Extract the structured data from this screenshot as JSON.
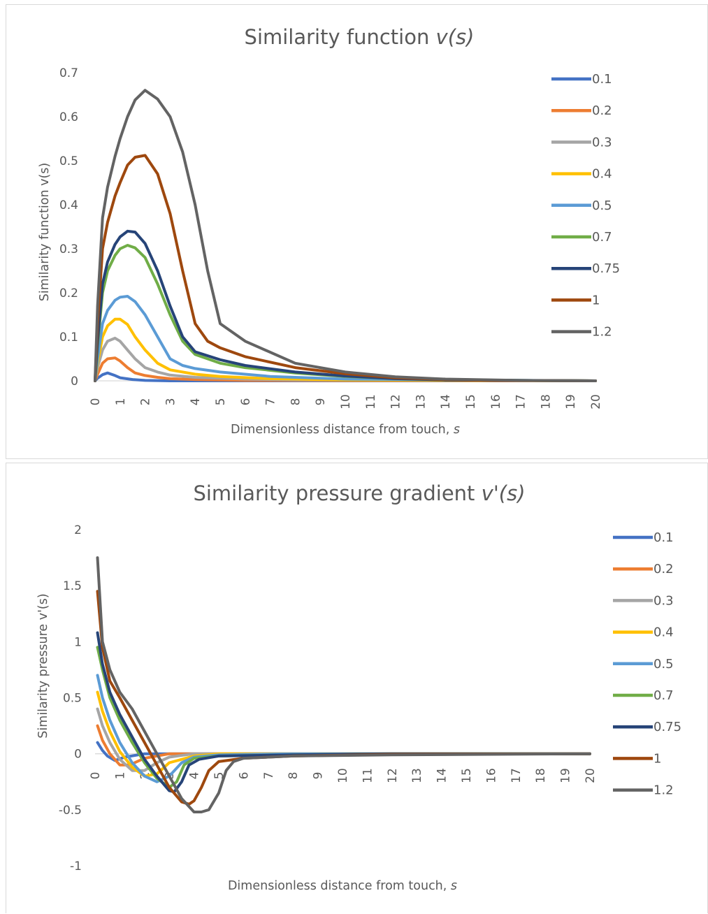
{
  "chart_data": [
    {
      "type": "line",
      "title": "Similarity function ",
      "title_italic": "v(s)",
      "xlabel": "Dimensionless distance from touch, ",
      "xlabel_italic": "s",
      "ylabel": "Similarity function v(s)",
      "xlim": [
        0,
        20
      ],
      "ylim": [
        0,
        0.7
      ],
      "yticks": [
        "0",
        "0.1",
        "0.2",
        "0.3",
        "0.4",
        "0.5",
        "0.6",
        "0.7"
      ],
      "xticks": [
        "0",
        "1",
        "2",
        "3",
        "4",
        "5",
        "6",
        "7",
        "8",
        "9",
        "10",
        "11",
        "12",
        "13",
        "14",
        "15",
        "16",
        "17",
        "18",
        "19",
        "20"
      ],
      "grid": false,
      "legend_position": "right",
      "series": [
        {
          "name": "0.1",
          "color": "#4472C4",
          "x": [
            0,
            0.1,
            0.3,
            0.5,
            0.8,
            1,
            1.5,
            2,
            3,
            20
          ],
          "y": [
            0,
            0.006,
            0.014,
            0.018,
            0.012,
            0.007,
            0.003,
            0.001,
            0,
            0
          ]
        },
        {
          "name": "0.2",
          "color": "#ED7D31",
          "x": [
            0,
            0.1,
            0.3,
            0.5,
            0.8,
            1,
            1.3,
            1.6,
            2,
            2.5,
            3,
            4,
            6,
            20
          ],
          "y": [
            0,
            0.015,
            0.04,
            0.05,
            0.052,
            0.045,
            0.03,
            0.018,
            0.012,
            0.008,
            0.005,
            0.003,
            0.001,
            0
          ]
        },
        {
          "name": "0.3",
          "color": "#A5A5A5",
          "x": [
            0,
            0.1,
            0.3,
            0.5,
            0.8,
            1,
            1.3,
            1.6,
            2,
            2.5,
            3,
            4,
            6,
            8,
            20
          ],
          "y": [
            0,
            0.03,
            0.07,
            0.09,
            0.097,
            0.09,
            0.07,
            0.05,
            0.03,
            0.02,
            0.013,
            0.008,
            0.004,
            0.002,
            0
          ]
        },
        {
          "name": "0.4",
          "color": "#FFC000",
          "x": [
            0,
            0.1,
            0.3,
            0.5,
            0.8,
            1,
            1.3,
            1.6,
            2,
            2.5,
            3,
            4,
            5,
            7,
            10,
            20
          ],
          "y": [
            0,
            0.04,
            0.1,
            0.125,
            0.14,
            0.14,
            0.128,
            0.1,
            0.07,
            0.04,
            0.025,
            0.015,
            0.01,
            0.005,
            0.002,
            0
          ]
        },
        {
          "name": "0.5",
          "color": "#5B9BD5",
          "x": [
            0,
            0.1,
            0.3,
            0.5,
            0.8,
            1,
            1.3,
            1.6,
            2,
            2.5,
            3,
            3.5,
            4,
            5,
            7,
            10,
            20
          ],
          "y": [
            0,
            0.05,
            0.13,
            0.16,
            0.183,
            0.19,
            0.192,
            0.18,
            0.15,
            0.1,
            0.05,
            0.035,
            0.028,
            0.02,
            0.01,
            0.004,
            0
          ]
        },
        {
          "name": "0.7",
          "color": "#70AD47",
          "x": [
            0,
            0.1,
            0.3,
            0.5,
            0.8,
            1,
            1.3,
            1.6,
            2,
            2.5,
            3,
            3.5,
            4,
            5,
            6,
            8,
            10,
            12,
            14,
            20
          ],
          "y": [
            0,
            0.08,
            0.2,
            0.25,
            0.285,
            0.3,
            0.308,
            0.302,
            0.28,
            0.22,
            0.15,
            0.09,
            0.06,
            0.04,
            0.03,
            0.018,
            0.01,
            0.005,
            0.002,
            0
          ]
        },
        {
          "name": "0.75",
          "color": "#264478",
          "x": [
            0,
            0.1,
            0.3,
            0.5,
            0.8,
            1,
            1.3,
            1.6,
            2,
            2.5,
            3,
            3.5,
            4,
            5,
            6,
            8,
            10,
            12,
            14,
            20
          ],
          "y": [
            0,
            0.09,
            0.22,
            0.27,
            0.31,
            0.327,
            0.34,
            0.338,
            0.312,
            0.25,
            0.17,
            0.1,
            0.066,
            0.048,
            0.035,
            0.02,
            0.011,
            0.005,
            0.002,
            0
          ]
        },
        {
          "name": "1",
          "color": "#9E480E",
          "x": [
            0,
            0.1,
            0.3,
            0.5,
            0.8,
            1,
            1.3,
            1.6,
            2,
            2.5,
            3,
            3.5,
            4,
            4.5,
            5,
            6,
            8,
            10,
            12,
            14,
            16,
            20
          ],
          "y": [
            0,
            0.13,
            0.3,
            0.36,
            0.42,
            0.45,
            0.49,
            0.508,
            0.512,
            0.47,
            0.38,
            0.25,
            0.13,
            0.09,
            0.075,
            0.055,
            0.03,
            0.016,
            0.007,
            0.003,
            0.001,
            0
          ]
        },
        {
          "name": "1.2",
          "color": "#636363",
          "x": [
            0,
            0.1,
            0.3,
            0.5,
            0.8,
            1,
            1.3,
            1.6,
            2,
            2.5,
            3,
            3.5,
            4,
            4.5,
            5,
            6,
            8,
            10,
            12,
            14,
            17,
            20
          ],
          "y": [
            0,
            0.17,
            0.37,
            0.44,
            0.51,
            0.55,
            0.6,
            0.638,
            0.66,
            0.64,
            0.6,
            0.52,
            0.4,
            0.25,
            0.13,
            0.09,
            0.04,
            0.02,
            0.009,
            0.004,
            0.001,
            0
          ]
        }
      ]
    },
    {
      "type": "line",
      "title": "Similarity pressure gradient ",
      "title_italic": "v'(s)",
      "xlabel": "Dimensionless distance from touch, ",
      "xlabel_italic": "s",
      "ylabel": "Similarity pressure v'(s)",
      "xlim": [
        0,
        20
      ],
      "ylim": [
        -1,
        2
      ],
      "yticks": [
        "-1",
        "-0.5",
        "0",
        "0.5",
        "1",
        "1.5",
        "2"
      ],
      "xticks": [
        "0",
        "1",
        "2",
        "3",
        "4",
        "5",
        "6",
        "7",
        "8",
        "9",
        "10",
        "11",
        "12",
        "13",
        "14",
        "15",
        "16",
        "17",
        "18",
        "19",
        "20"
      ],
      "grid": false,
      "legend_position": "right",
      "series": [
        {
          "name": "0.1",
          "color": "#4472C4",
          "x": [
            0.1,
            0.3,
            0.5,
            0.8,
            1.2,
            2,
            20
          ],
          "y": [
            0.1,
            0.03,
            -0.02,
            -0.06,
            -0.03,
            0,
            0
          ]
        },
        {
          "name": "0.2",
          "color": "#ED7D31",
          "x": [
            0.1,
            0.3,
            0.6,
            1,
            1.4,
            2,
            3,
            20
          ],
          "y": [
            0.25,
            0.12,
            0,
            -0.1,
            -0.1,
            -0.04,
            0,
            0
          ]
        },
        {
          "name": "0.3",
          "color": "#A5A5A5",
          "x": [
            0.1,
            0.3,
            0.6,
            1,
            1.5,
            2,
            2.5,
            3,
            4,
            20
          ],
          "y": [
            0.4,
            0.25,
            0.1,
            -0.05,
            -0.15,
            -0.15,
            -0.08,
            -0.03,
            0,
            0
          ]
        },
        {
          "name": "0.4",
          "color": "#FFC000",
          "x": [
            0.1,
            0.3,
            0.6,
            1,
            1.5,
            2,
            2.5,
            3,
            4,
            5,
            10,
            20
          ],
          "y": [
            0.55,
            0.38,
            0.2,
            0.02,
            -0.12,
            -0.2,
            -0.18,
            -0.08,
            -0.02,
            0,
            0,
            0
          ]
        },
        {
          "name": "0.5",
          "color": "#5B9BD5",
          "x": [
            0.1,
            0.3,
            0.6,
            1,
            1.5,
            2,
            2.5,
            3,
            3.5,
            4,
            5,
            8,
            20
          ],
          "y": [
            0.7,
            0.5,
            0.3,
            0.1,
            -0.08,
            -0.2,
            -0.25,
            -0.2,
            -0.08,
            -0.03,
            -0.01,
            0,
            0
          ]
        },
        {
          "name": "0.7",
          "color": "#70AD47",
          "x": [
            0.1,
            0.3,
            0.6,
            1,
            1.5,
            2,
            2.5,
            3,
            3.3,
            3.6,
            4,
            5,
            8,
            12,
            20
          ],
          "y": [
            0.95,
            0.75,
            0.5,
            0.3,
            0.1,
            -0.08,
            -0.22,
            -0.3,
            -0.25,
            -0.1,
            -0.04,
            -0.02,
            -0.01,
            0,
            0
          ]
        },
        {
          "name": "0.75",
          "color": "#264478",
          "x": [
            0.1,
            0.3,
            0.6,
            1,
            1.5,
            2,
            2.5,
            3,
            3.2,
            3.5,
            3.8,
            4.2,
            5,
            8,
            12,
            20
          ],
          "y": [
            1.08,
            0.8,
            0.55,
            0.35,
            0.15,
            -0.05,
            -0.2,
            -0.33,
            -0.34,
            -0.25,
            -0.1,
            -0.05,
            -0.02,
            -0.01,
            0,
            0
          ]
        },
        {
          "name": "1",
          "color": "#9E480E",
          "x": [
            0.1,
            0.3,
            0.6,
            1,
            1.5,
            2,
            2.5,
            3,
            3.5,
            3.8,
            4,
            4.3,
            4.6,
            5,
            6,
            8,
            12,
            20
          ],
          "y": [
            1.45,
            0.95,
            0.65,
            0.5,
            0.3,
            0.1,
            -0.1,
            -0.3,
            -0.43,
            -0.45,
            -0.42,
            -0.3,
            -0.15,
            -0.07,
            -0.04,
            -0.02,
            -0.005,
            0
          ]
        },
        {
          "name": "1.2",
          "color": "#636363",
          "x": [
            0.1,
            0.3,
            0.6,
            1,
            1.5,
            2,
            2.5,
            3,
            3.5,
            4,
            4.3,
            4.6,
            5,
            5.3,
            5.6,
            6,
            8,
            12,
            20
          ],
          "y": [
            1.75,
            1.0,
            0.75,
            0.55,
            0.4,
            0.2,
            0,
            -0.2,
            -0.4,
            -0.52,
            -0.52,
            -0.5,
            -0.35,
            -0.15,
            -0.07,
            -0.04,
            -0.02,
            -0.01,
            0
          ]
        }
      ]
    }
  ]
}
